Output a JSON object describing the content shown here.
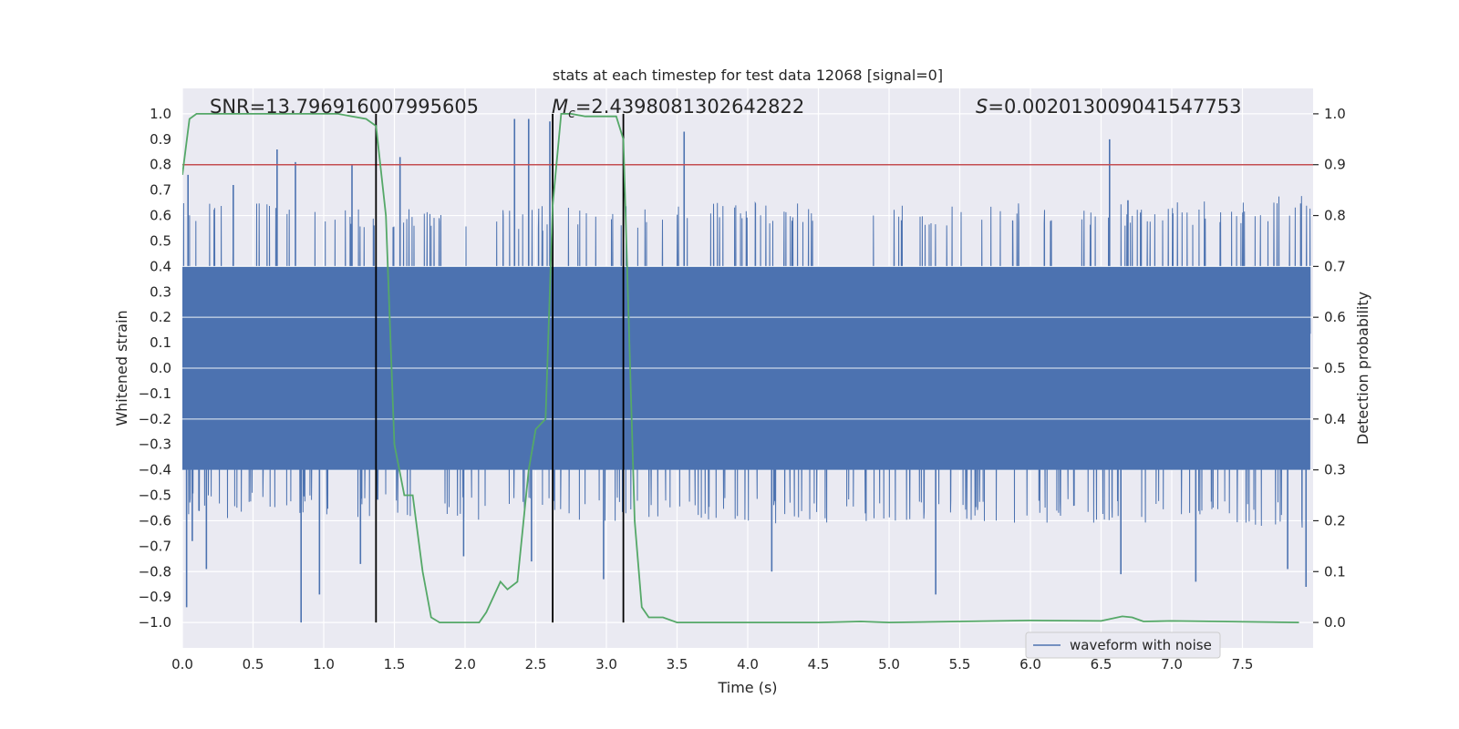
{
  "chart_data": {
    "type": "line",
    "title": "stats at each timestep for test data 12068 [signal=0]",
    "xlabel": "Time (s)",
    "ylabel": "Whitened strain",
    "y2label": "Detection probability",
    "xlim": [
      0.0,
      8.0
    ],
    "ylim": [
      -1.1,
      1.1
    ],
    "y2lim": [
      -0.05,
      1.05
    ],
    "xticks": [
      0.0,
      0.5,
      1.0,
      1.5,
      2.0,
      2.5,
      3.0,
      3.5,
      4.0,
      4.5,
      5.0,
      5.5,
      6.0,
      6.5,
      7.0,
      7.5
    ],
    "xtick_labels": [
      "0.0",
      "0.5",
      "1.0",
      "1.5",
      "2.0",
      "2.5",
      "3.0",
      "3.5",
      "4.0",
      "4.5",
      "5.0",
      "5.5",
      "6.0",
      "6.5",
      "7.0",
      "7.5"
    ],
    "yticks": [
      1.0,
      0.9,
      0.8,
      0.7,
      0.6,
      0.5,
      0.4,
      0.3,
      0.2,
      0.1,
      0.0,
      -0.1,
      -0.2,
      -0.3,
      -0.4,
      -0.5,
      -0.6,
      -0.7,
      -0.8,
      -0.9,
      -1.0
    ],
    "ytick_labels": [
      "1.0",
      "0.9",
      "0.8",
      "0.7",
      "0.6",
      "0.5",
      "0.4",
      "0.3",
      "0.2",
      "0.1",
      "0.0",
      "−0.1",
      "−0.2",
      "−0.3",
      "−0.4",
      "−0.5",
      "−0.6",
      "−0.7",
      "−0.8",
      "−0.9",
      "−1.0"
    ],
    "y2ticks": [
      1.0,
      0.9,
      0.8,
      0.7,
      0.6,
      0.5,
      0.4,
      0.3,
      0.2,
      0.1,
      0.0
    ],
    "y2tick_labels": [
      "1.0",
      "0.9",
      "0.8",
      "0.7",
      "0.6",
      "0.5",
      "0.4",
      "0.3",
      "0.2",
      "0.1",
      "0.0"
    ],
    "grid": true,
    "legend": {
      "location": "lower-right",
      "entries": [
        "waveform with noise"
      ]
    },
    "annotations": {
      "snr": "SNR=13.796916007995605",
      "mc_symbol": "M",
      "mc_subscript": "c",
      "mc_value": "=2.4398081302642822",
      "s_symbol": "S",
      "s_value": "=0.002013009041547753"
    },
    "threshold": {
      "axis": "y2",
      "value": 0.9,
      "color": "#c44e52"
    },
    "vlines": {
      "x": [
        1.37,
        2.62,
        3.12
      ],
      "ymin": -1.0,
      "ymax": 1.0,
      "color": "#000000"
    },
    "waveform": {
      "name": "waveform with noise",
      "color": "#4c72b0",
      "core_amplitude": 0.4,
      "envelope_x": [
        0.0,
        1.0,
        2.0,
        3.0,
        4.0,
        5.0,
        6.0,
        7.0,
        8.0
      ],
      "envelope_high": [
        0.64,
        0.62,
        0.62,
        0.62,
        0.64,
        0.64,
        0.63,
        0.64,
        0.66
      ],
      "envelope_low": [
        -0.57,
        -0.57,
        -0.58,
        -0.58,
        -0.59,
        -0.59,
        -0.59,
        -0.59,
        -0.61
      ],
      "peaks_x": [
        0.04,
        0.36,
        0.67,
        0.8,
        1.2,
        1.54,
        2.35,
        2.45,
        2.6,
        3.55,
        6.56,
        6.69
      ],
      "peaks_y": [
        0.76,
        0.72,
        0.86,
        0.81,
        0.8,
        0.83,
        0.98,
        0.98,
        0.97,
        0.93,
        0.9,
        0.66
      ],
      "troughs_x": [
        0.03,
        0.07,
        0.17,
        0.84,
        0.97,
        1.26,
        1.99,
        2.47,
        2.98,
        4.17,
        5.33,
        6.64,
        7.17,
        7.82,
        7.95
      ],
      "troughs_y": [
        -0.94,
        -0.68,
        -0.79,
        -1.0,
        -0.89,
        -0.77,
        -0.74,
        -0.76,
        -0.83,
        -0.8,
        -0.89,
        -0.81,
        -0.84,
        -0.79,
        -0.86
      ]
    },
    "detection_probability": {
      "name": "detection probability",
      "axis": "y2",
      "color": "#55a868",
      "x": [
        0.0,
        0.05,
        0.1,
        0.2,
        0.3,
        0.6,
        0.9,
        1.1,
        1.2,
        1.3,
        1.37,
        1.44,
        1.5,
        1.57,
        1.63,
        1.7,
        1.76,
        1.82,
        1.9,
        2.0,
        2.1,
        2.15,
        2.25,
        2.3,
        2.37,
        2.45,
        2.5,
        2.57,
        2.62,
        2.68,
        2.75,
        2.85,
        3.0,
        3.07,
        3.12,
        3.2,
        3.25,
        3.3,
        3.4,
        3.5,
        4.0,
        4.5,
        4.8,
        5.0,
        5.5,
        6.0,
        6.5,
        6.65,
        6.72,
        6.8,
        7.0,
        7.9
      ],
      "y": [
        0.88,
        0.99,
        1.0,
        1.0,
        1.0,
        1.0,
        1.0,
        1.0,
        0.995,
        0.99,
        0.976,
        0.8,
        0.35,
        0.25,
        0.25,
        0.1,
        0.01,
        0.0,
        0.0,
        0.0,
        0.0,
        0.02,
        0.08,
        0.065,
        0.08,
        0.3,
        0.38,
        0.4,
        0.82,
        1.0,
        1.0,
        0.995,
        0.995,
        0.995,
        0.95,
        0.2,
        0.03,
        0.01,
        0.01,
        0.0,
        0.0,
        0.0,
        0.002,
        0.0,
        0.002,
        0.004,
        0.003,
        0.012,
        0.01,
        0.002,
        0.003,
        0.0
      ]
    }
  }
}
